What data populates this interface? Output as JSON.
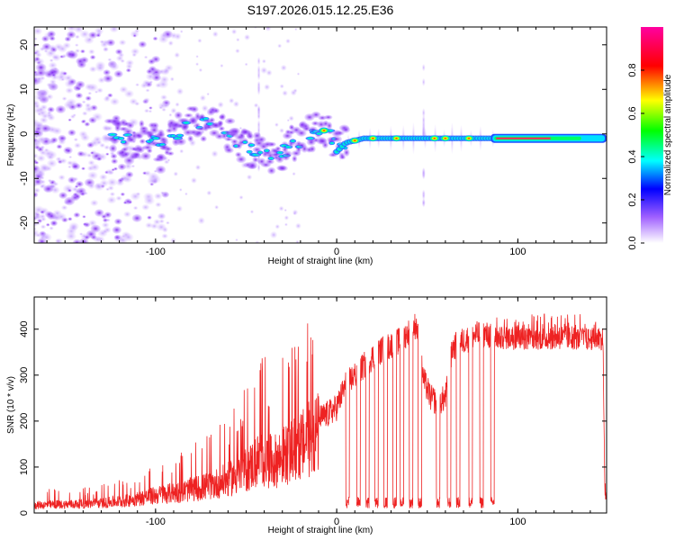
{
  "title": "S197.2026.015.12.25.E36",
  "chart_data": [
    {
      "type": "heatmap",
      "xlabel": "Height of straight line (km)",
      "ylabel": "Frequency (Hz)",
      "xlim": [
        -167,
        149
      ],
      "ylim": [
        -24.5,
        24
      ],
      "xticks": [
        -100,
        0,
        100
      ],
      "xtick_labels": [
        "-100",
        "0",
        "100"
      ],
      "yticks": [
        -20,
        -10,
        0,
        10,
        20
      ],
      "ytick_labels": [
        "-20",
        "-10",
        "0",
        "10",
        "20"
      ],
      "colorbar": {
        "label": "Normalized spectral amplitude",
        "range": [
          0,
          1
        ],
        "ticks": [
          0.0,
          0.2,
          0.4,
          0.6,
          0.8
        ],
        "tick_labels": [
          "0.0",
          "0.2",
          "0.4",
          "0.6",
          "0.8"
        ],
        "colors": [
          "#ffffff",
          "#a060ff",
          "#0000ff",
          "#00ffff",
          "#00ff00",
          "#ffff00",
          "#ff0000",
          "#ff00a0"
        ]
      },
      "ridge": {
        "x": [
          -125,
          -110,
          -95,
          -85,
          -75,
          -65,
          -55,
          -45,
          -38,
          -30,
          -22,
          -15,
          -8,
          -4,
          0,
          5,
          15,
          30,
          45,
          60,
          75,
          85,
          100,
          120,
          149
        ],
        "y": [
          -1,
          -1.5,
          -2,
          1,
          3,
          2,
          -2,
          -4,
          -5,
          -4,
          -2,
          0,
          1,
          0,
          -4,
          -2,
          -1,
          -1,
          -1,
          -1,
          -1,
          -1,
          -1,
          -1,
          -1
        ]
      },
      "vertical_streaks": [
        {
          "x": -43,
          "y_from": -10,
          "y_to": 18
        },
        {
          "x": 48,
          "y_from": -18,
          "y_to": 18
        }
      ]
    },
    {
      "type": "line",
      "xlabel": "Height of straight line (km)",
      "ylabel": "SNR (10 * v/v)",
      "xlim": [
        -167,
        149
      ],
      "ylim": [
        0,
        470
      ],
      "xticks": [
        -100,
        0,
        100
      ],
      "xtick_labels": [
        "-100",
        "0",
        "100"
      ],
      "yticks": [
        0,
        100,
        200,
        300,
        400
      ],
      "ytick_labels": [
        "0",
        "100",
        "200",
        "300",
        "400"
      ],
      "series": [
        {
          "name": "SNR",
          "color": "#ee2222",
          "x": [
            -167,
            -150,
            -130,
            -115,
            -100,
            -85,
            -70,
            -60,
            -50,
            -42,
            -35,
            -28,
            -20,
            -12,
            -5,
            0,
            5,
            10,
            15,
            20,
            25,
            30,
            35,
            40,
            44,
            48,
            52,
            56,
            60,
            64,
            70,
            75,
            80,
            85,
            90,
            100,
            110,
            120,
            130,
            140,
            147,
            148,
            149
          ],
          "y": [
            20,
            22,
            25,
            32,
            45,
            55,
            70,
            85,
            110,
            140,
            130,
            150,
            170,
            200,
            215,
            230,
            280,
            300,
            320,
            340,
            355,
            365,
            375,
            395,
            410,
            290,
            250,
            240,
            250,
            360,
            375,
            385,
            390,
            385,
            380,
            380,
            380,
            380,
            380,
            378,
            380,
            60,
            30
          ]
        }
      ],
      "dropouts": [
        {
          "x": 6,
          "y": 15
        },
        {
          "x": 12,
          "y": 15
        },
        {
          "x": 17,
          "y": 15
        },
        {
          "x": 22,
          "y": 15
        },
        {
          "x": 27,
          "y": 15
        },
        {
          "x": 32,
          "y": 15
        },
        {
          "x": 36,
          "y": 15
        },
        {
          "x": 41,
          "y": 15
        },
        {
          "x": 46,
          "y": 20
        },
        {
          "x": 56,
          "y": 25
        },
        {
          "x": 62,
          "y": 20
        },
        {
          "x": 67,
          "y": 20
        },
        {
          "x": 74,
          "y": 25
        },
        {
          "x": 80,
          "y": 20
        },
        {
          "x": 86,
          "y": 25
        }
      ]
    }
  ]
}
